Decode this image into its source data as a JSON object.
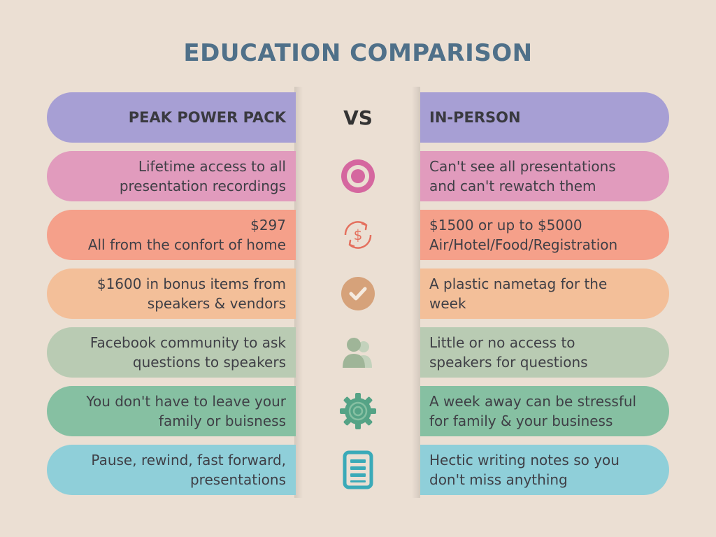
{
  "title": "EDUCATION COMPARISON",
  "header": {
    "left": "PEAK POWER PACK",
    "middle": "VS",
    "right": "IN-PERSON"
  },
  "colors": {
    "background": "#ebdfd3",
    "title": "#4f7089",
    "header": "#a79fd4",
    "row_pink": "#e19bbd",
    "row_salmon": "#f5a08a",
    "row_peach": "#f3bf99",
    "row_sage": "#b9cbb3",
    "row_green": "#86c0a2",
    "row_blue": "#8fcfd9"
  },
  "rows": [
    {
      "icon": "target-icon",
      "left": "Lifetime access to all\npresentation recordings",
      "right": "Can't see all presentations\nand can't rewatch them"
    },
    {
      "icon": "dollar-cycle-icon",
      "left": "$297\nAll from the confort of home",
      "right": "$1500 or up to $5000\nAir/Hotel/Food/Registration"
    },
    {
      "icon": "check-circle-icon",
      "left": "$1600 in bonus items from\nspeakers & vendors",
      "right": "A plastic nametag for the\nweek"
    },
    {
      "icon": "people-icon",
      "left": "Facebook community to ask\nquestions to speakers",
      "right": "Little or no access to\nspeakers for questions"
    },
    {
      "icon": "gear-icon",
      "left": "You don't have to leave your\nfamily or buisness",
      "right": "A week away can be stressful\nfor family & your business"
    },
    {
      "icon": "document-icon",
      "left": "Pause, rewind, fast forward,\npresentations",
      "right": "Hectic writing notes so you\ndon't miss anything"
    }
  ]
}
